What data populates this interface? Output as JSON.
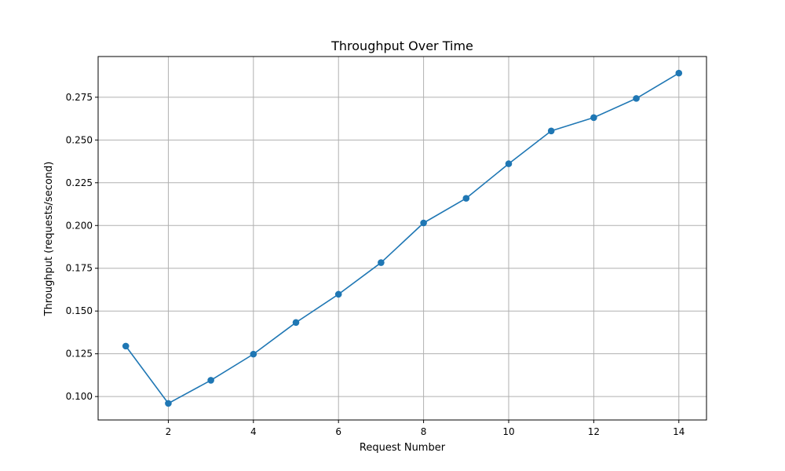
{
  "chart_data": {
    "type": "line",
    "title": "Throughput Over Time",
    "xlabel": "Request Number",
    "ylabel": "Throughput (requests/second)",
    "x": [
      1,
      2,
      3,
      4,
      5,
      6,
      7,
      8,
      9,
      10,
      11,
      12,
      13,
      14
    ],
    "series": [
      {
        "values": [
          0.1295,
          0.096,
          0.1095,
          0.1248,
          0.1433,
          0.1598,
          0.1783,
          0.2015,
          0.2159,
          0.2361,
          0.2553,
          0.2631,
          0.2743,
          0.2891
        ],
        "color": "#1f77b4",
        "marker": "circle"
      }
    ],
    "xlim": [
      0.35,
      14.65
    ],
    "ylim": [
      0.0863,
      0.2988
    ],
    "xticks": [
      2,
      4,
      6,
      8,
      10,
      12,
      14
    ],
    "xtick_labels": [
      "2",
      "4",
      "6",
      "8",
      "10",
      "12",
      "14"
    ],
    "yticks": [
      0.1,
      0.125,
      0.15,
      0.175,
      0.2,
      0.225,
      0.25,
      0.275
    ],
    "ytick_labels": [
      "0.100",
      "0.125",
      "0.150",
      "0.175",
      "0.200",
      "0.225",
      "0.250",
      "0.275"
    ],
    "grid": true,
    "grid_color": "#b0b0b0",
    "line_color": "#1f77b4"
  }
}
